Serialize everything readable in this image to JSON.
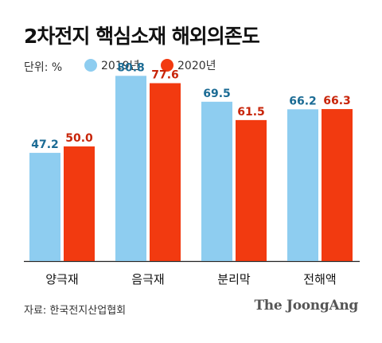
{
  "chart_data": {
    "type": "bar",
    "title": "2차전지 핵심소재 해외의존도",
    "unit_label": "단위: %",
    "categories": [
      "양극재",
      "음극재",
      "분리막",
      "전해액"
    ],
    "series": [
      {
        "name": "2019년",
        "values": [
          47.2,
          80.8,
          69.5,
          66.2
        ],
        "color": "#8ecdf0",
        "label_color": "#1b6b94"
      },
      {
        "name": "2020년",
        "values": [
          50.0,
          77.6,
          61.5,
          66.3
        ],
        "color": "#f23a10",
        "label_color": "#c8250a"
      }
    ],
    "value_labels": [
      [
        "47.2",
        "80.8",
        "69.5",
        "66.2"
      ],
      [
        "50.0",
        "77.6",
        "61.5",
        "66.3"
      ]
    ],
    "ylim": [
      0,
      100
    ],
    "grid": false,
    "legend_placement": "top"
  },
  "footer": {
    "source": "자료: 한국전지산업협회",
    "brand": "The JoongAng"
  }
}
